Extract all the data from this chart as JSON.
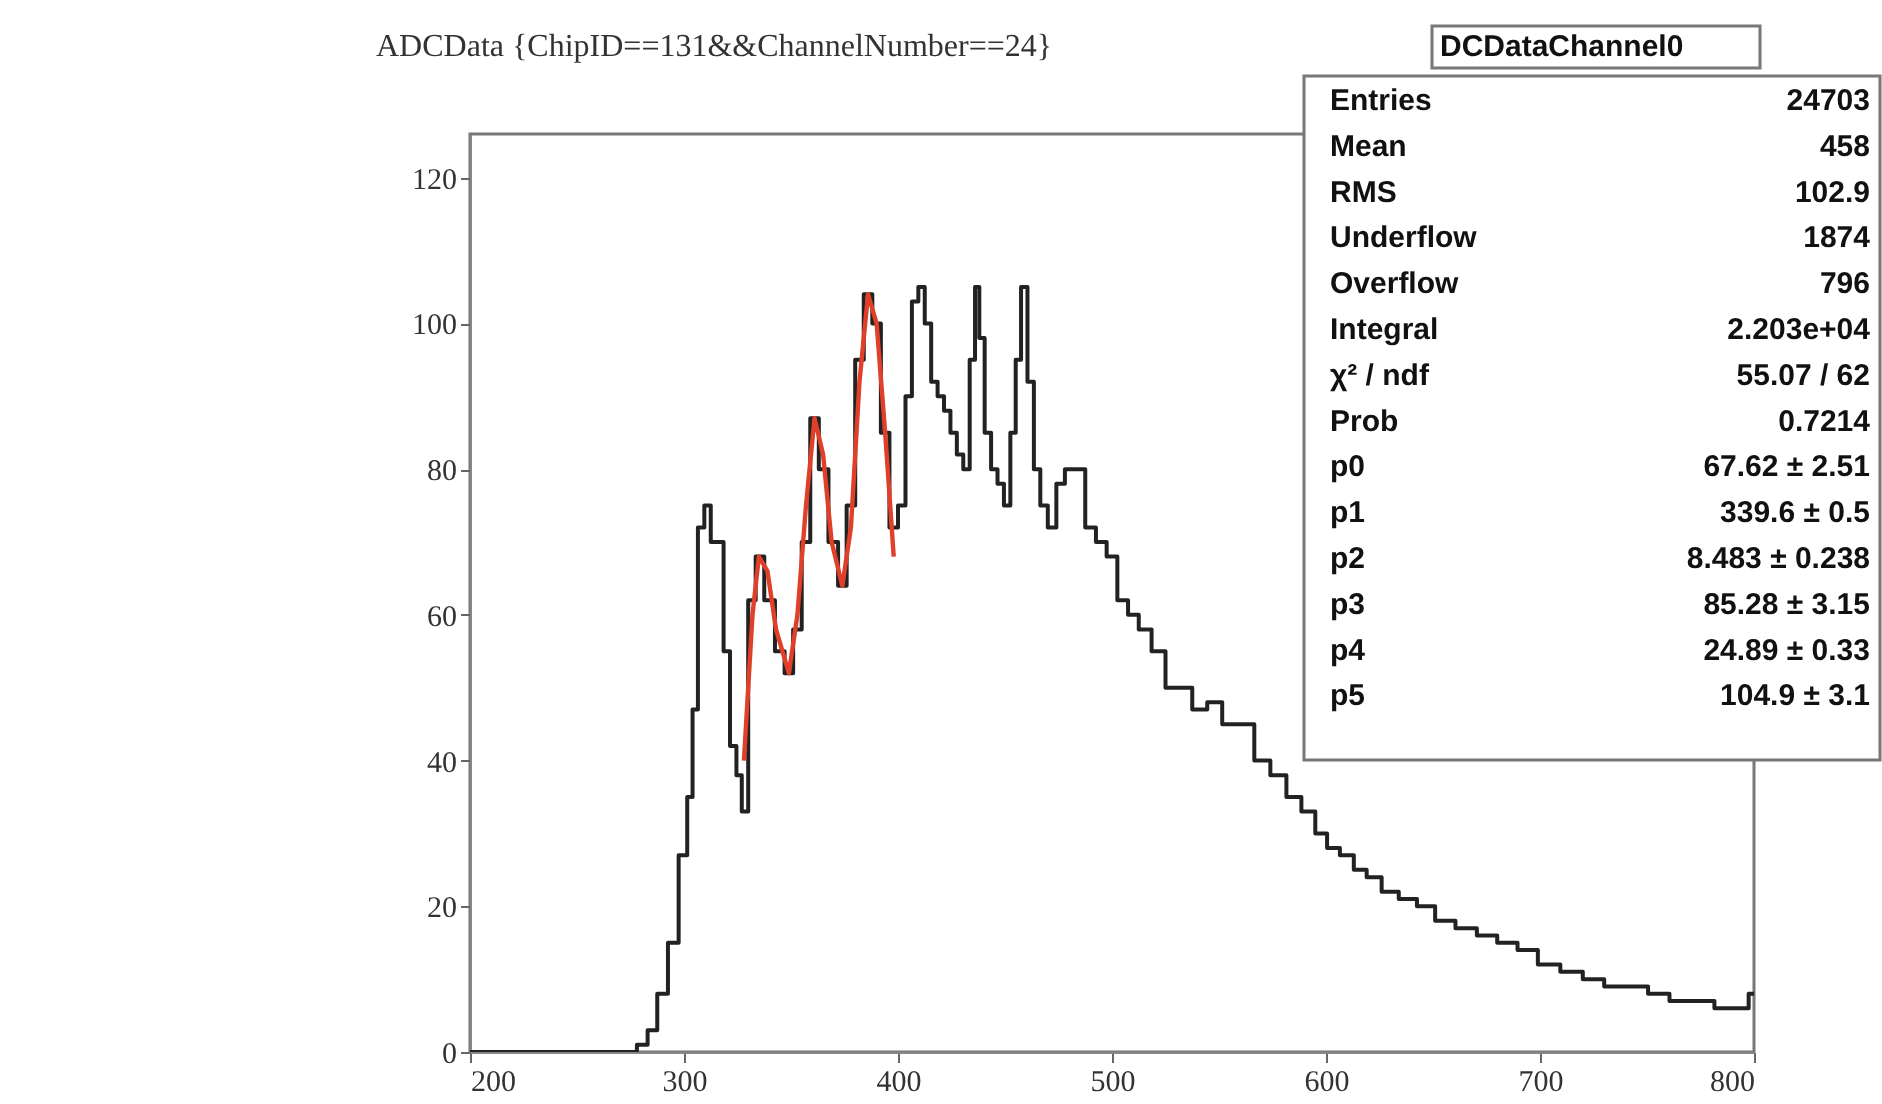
{
  "chart_data": {
    "type": "step",
    "title": "ADCData {ChipID==131&&ChannelNumber==24}",
    "xlim": [
      200,
      800
    ],
    "ylim": [
      0,
      126
    ],
    "xticks": [
      200,
      300,
      400,
      500,
      600,
      700,
      800
    ],
    "yticks": [
      0,
      20,
      40,
      60,
      80,
      100,
      120
    ],
    "grid": false,
    "series": [
      {
        "color": "#222222",
        "x": [
          200,
          220,
          240,
          260,
          275,
          281,
          285,
          290,
          295,
          300,
          303,
          305,
          308,
          311,
          314,
          317,
          320,
          323,
          326,
          328,
          332,
          335,
          340,
          345,
          349,
          353,
          357,
          361,
          365,
          370,
          374,
          378,
          382,
          386,
          390,
          394,
          398,
          402,
          405,
          408,
          411,
          414,
          417,
          420,
          423,
          426,
          429,
          432,
          435,
          437,
          439,
          442,
          445,
          448,
          451,
          454,
          456,
          459,
          462,
          465,
          468,
          472,
          476,
          480,
          485,
          490,
          495,
          500,
          505,
          510,
          515,
          522,
          528,
          534,
          541,
          548,
          555,
          563,
          570,
          578,
          585,
          592,
          598,
          603,
          610,
          616,
          622,
          630,
          638,
          647,
          655,
          666,
          675,
          685,
          694,
          704,
          715,
          725,
          735,
          745,
          756,
          765,
          776,
          787,
          795,
          800
        ],
        "values": [
          0,
          0,
          0,
          0,
          0,
          1,
          3,
          8,
          15,
          27,
          35,
          47,
          72,
          75,
          70,
          70,
          55,
          42,
          38,
          33,
          62,
          68,
          62,
          55,
          52,
          58,
          70,
          87,
          80,
          70,
          64,
          75,
          95,
          104,
          100,
          85,
          72,
          75,
          90,
          103,
          105,
          100,
          92,
          90,
          88,
          85,
          82,
          80,
          95,
          105,
          98,
          85,
          80,
          78,
          75,
          85,
          95,
          105,
          92,
          80,
          75,
          72,
          78,
          80,
          80,
          72,
          70,
          68,
          62,
          60,
          58,
          55,
          50,
          50,
          47,
          48,
          45,
          45,
          40,
          38,
          35,
          33,
          30,
          28,
          27,
          25,
          24,
          22,
          21,
          20,
          18,
          17,
          16,
          15,
          14,
          12,
          11,
          10,
          9,
          9,
          8,
          7,
          7,
          6,
          6,
          8
        ]
      },
      {
        "type": "line",
        "color": "#e0402a",
        "x": [
          328,
          332,
          335,
          339,
          343,
          349,
          353,
          357,
          361,
          365,
          369,
          374,
          378,
          382,
          386,
          390,
          394,
          398
        ],
        "values": [
          40,
          60,
          68,
          66,
          58,
          52,
          60,
          75,
          87,
          82,
          70,
          64,
          72,
          92,
          104,
          100,
          85,
          68
        ]
      }
    ],
    "annotations": [
      "DCDataChannel0",
      "Entries",
      "24703",
      "Mean",
      "458",
      "RMS",
      "102.9",
      "Underflow",
      "1874",
      "Overflow",
      "796",
      "Integral",
      "2.203e+04",
      "χ² / ndf",
      "55.07 / 62",
      "Prob",
      "0.7214",
      "p0",
      "67.62 ± 2.51",
      "p1",
      "339.6 ± 0.5",
      "p2",
      "8.483 ± 0.238",
      "p3",
      "85.28 ± 3.15",
      "p4",
      "24.89 ± 0.33",
      "p5",
      "104.9 ± 3.1"
    ]
  }
}
